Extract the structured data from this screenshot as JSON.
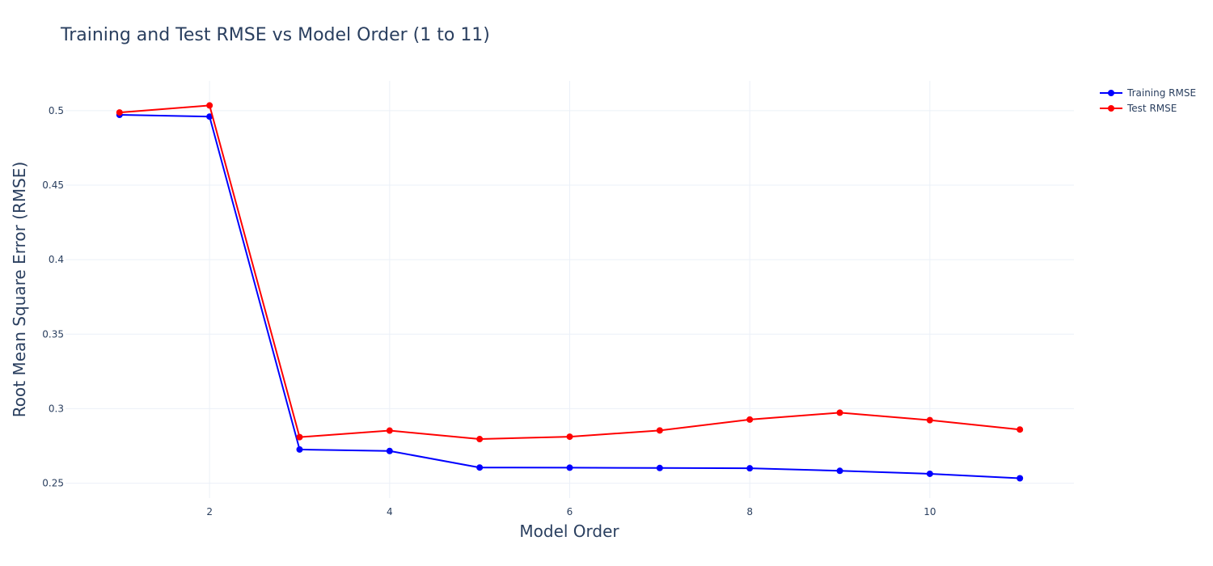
{
  "chart_data": {
    "type": "line",
    "title": "Training and Test RMSE vs Model Order (1 to 11)",
    "xlabel": "Model Order",
    "ylabel": "Root Mean Square Error (RMSE)",
    "x": [
      1,
      2,
      3,
      4,
      5,
      6,
      7,
      8,
      9,
      10,
      11
    ],
    "xlim": [
      0.4,
      11.6
    ],
    "ylim": [
      0.24,
      0.52
    ],
    "xticks": [
      2,
      4,
      6,
      8,
      10
    ],
    "yticks": [
      0.25,
      0.3,
      0.35,
      0.4,
      0.45,
      0.5
    ],
    "ytick_labels": [
      "0.25",
      "0.3",
      "0.35",
      "0.4",
      "0.45",
      "0.5"
    ],
    "grid": true,
    "legend_position": "top-right",
    "series": [
      {
        "name": "Training RMSE",
        "color": "#0000ff",
        "values": [
          0.4972,
          0.496,
          0.2726,
          0.2716,
          0.2605,
          0.2604,
          0.2602,
          0.26,
          0.2583,
          0.2563,
          0.2533
        ]
      },
      {
        "name": "Test RMSE",
        "color": "#ff0000",
        "values": [
          0.4988,
          0.5035,
          0.2809,
          0.2853,
          0.2796,
          0.2812,
          0.2854,
          0.2927,
          0.2973,
          0.2923,
          0.286
        ]
      }
    ]
  }
}
